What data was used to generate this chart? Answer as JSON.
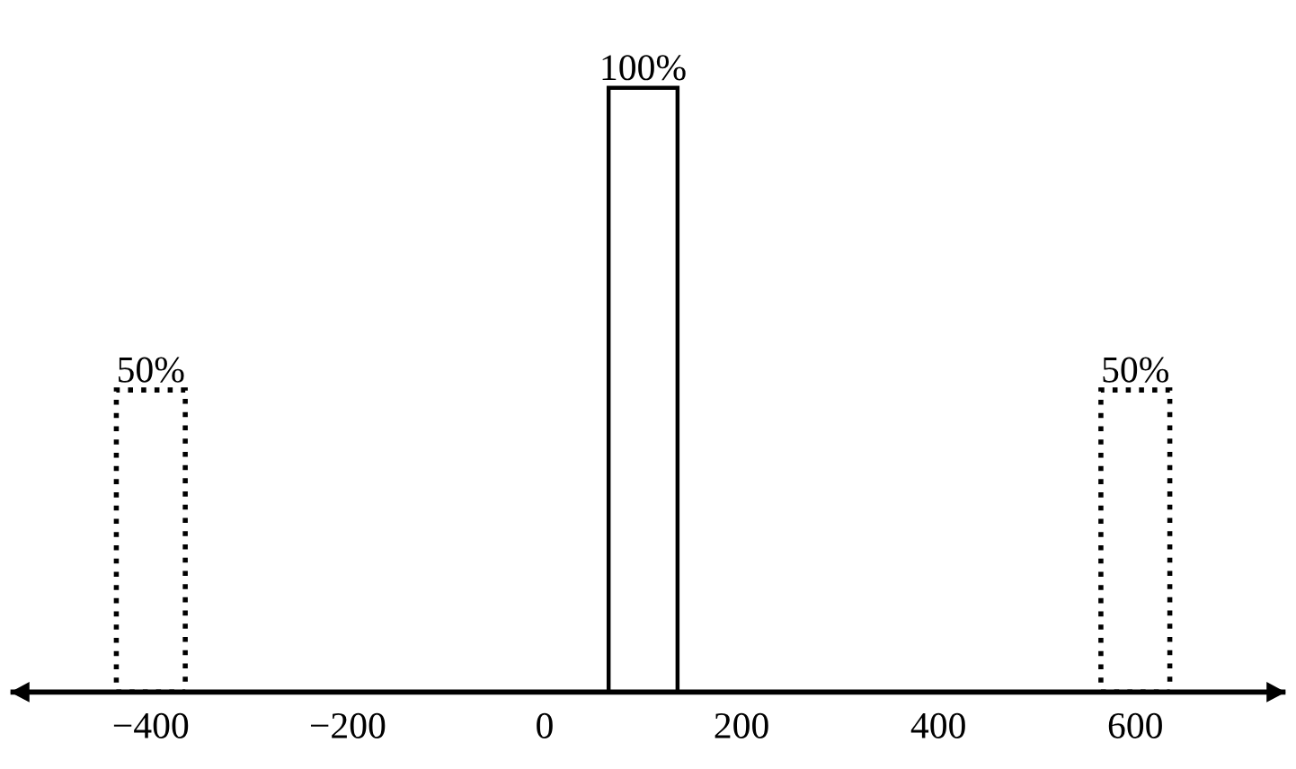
{
  "chart_data": {
    "type": "bar",
    "x": [
      -400,
      100,
      600
    ],
    "series": [
      {
        "color": "#000000",
        "line_style": "dotted",
        "values": [
          50,
          null,
          50
        ],
        "value_labels": [
          "50%",
          null,
          "50%"
        ]
      },
      {
        "color": "#000000",
        "line_style": "solid",
        "values": [
          null,
          100,
          null
        ],
        "value_labels": [
          null,
          "100%",
          null
        ]
      }
    ],
    "xlim": [
      -540,
      750
    ],
    "xticks": [
      {
        "value": -400,
        "label": "−400"
      },
      {
        "value": -200,
        "label": "−200"
      },
      0,
      200,
      400,
      600
    ],
    "grid": false,
    "legend": false
  }
}
